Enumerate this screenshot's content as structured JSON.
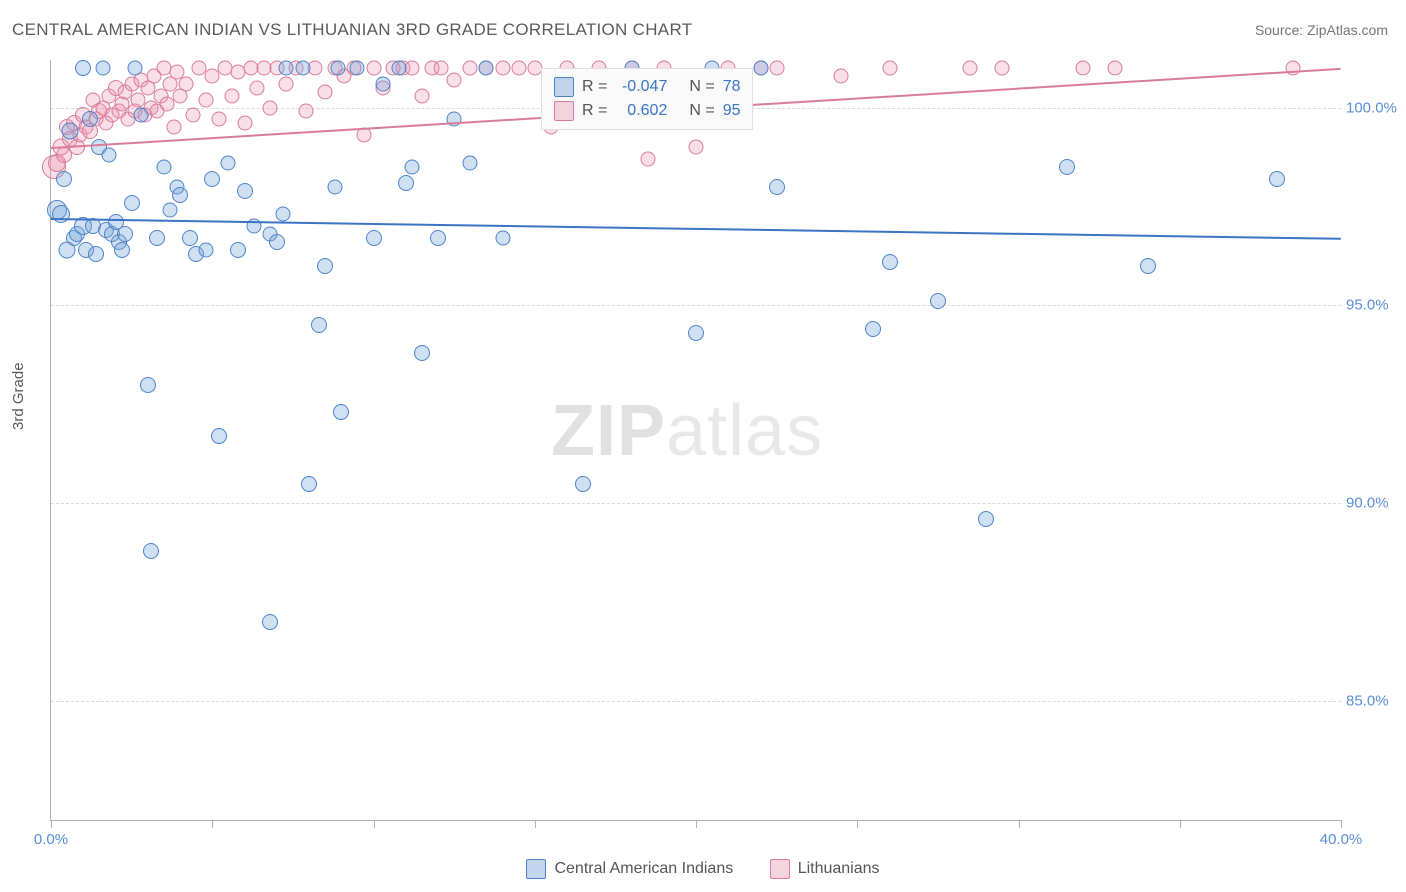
{
  "title": "CENTRAL AMERICAN INDIAN VS LITHUANIAN 3RD GRADE CORRELATION CHART",
  "source": "Source: ZipAtlas.com",
  "ylabel": "3rd Grade",
  "watermark_bold": "ZIP",
  "watermark_light": "atlas",
  "chart": {
    "type": "scatter",
    "xlim": [
      0,
      40
    ],
    "ylim": [
      82,
      101.2
    ],
    "x_ticks": [
      0,
      5,
      10,
      15,
      20,
      25,
      30,
      35,
      40
    ],
    "x_tick_labels_shown": {
      "0": "0.0%",
      "40": "40.0%"
    },
    "y_ticks": [
      85,
      90,
      95,
      100
    ],
    "y_tick_labels": {
      "85": "85.0%",
      "90": "90.0%",
      "95": "95.0%",
      "100": "100.0%"
    },
    "background_color": "#ffffff",
    "grid_color": "#d9d9d9",
    "axis_color": "#b0b0b0",
    "label_fontsize": 15,
    "label_color": "#5a8fd6",
    "marker_base_size": 16,
    "series": {
      "blue": {
        "name": "Central American Indians",
        "color_fill": "rgba(120,165,220,0.35)",
        "color_stroke": "#4f83c7",
        "R": "-0.047",
        "N": "78",
        "trend": {
          "x1": 0,
          "y1": 97.2,
          "x2": 40,
          "y2": 96.7,
          "color": "#3a74c4",
          "width": 2
        },
        "points": [
          [
            0.2,
            97.4,
            18
          ],
          [
            0.3,
            97.3,
            16
          ],
          [
            0.4,
            98.2,
            14
          ],
          [
            0.5,
            96.4,
            15
          ],
          [
            0.6,
            99.4,
            15
          ],
          [
            0.7,
            96.7,
            14
          ],
          [
            0.8,
            96.8,
            14
          ],
          [
            1.0,
            101.0,
            14
          ],
          [
            1.0,
            97.0,
            16
          ],
          [
            1.1,
            96.4,
            14
          ],
          [
            1.2,
            99.7,
            14
          ],
          [
            1.3,
            97.0,
            14
          ],
          [
            1.4,
            96.3,
            14
          ],
          [
            1.5,
            99.0,
            14
          ],
          [
            1.6,
            101.0,
            13
          ],
          [
            1.7,
            96.9,
            14
          ],
          [
            1.8,
            98.8,
            13
          ],
          [
            1.9,
            96.8,
            14
          ],
          [
            2.0,
            97.1,
            14
          ],
          [
            2.1,
            96.6,
            14
          ],
          [
            2.2,
            96.4,
            14
          ],
          [
            2.3,
            96.8,
            14
          ],
          [
            2.5,
            97.6,
            14
          ],
          [
            2.6,
            101.0,
            13
          ],
          [
            2.8,
            99.8,
            13
          ],
          [
            3.0,
            93.0,
            14
          ],
          [
            3.1,
            88.8,
            14
          ],
          [
            3.3,
            96.7,
            14
          ],
          [
            3.5,
            98.5,
            13
          ],
          [
            3.7,
            97.4,
            13
          ],
          [
            3.9,
            98.0,
            13
          ],
          [
            4.0,
            97.8,
            14
          ],
          [
            4.3,
            96.7,
            14
          ],
          [
            4.5,
            96.3,
            14
          ],
          [
            4.8,
            96.4,
            13
          ],
          [
            5.0,
            98.2,
            14
          ],
          [
            5.2,
            91.7,
            14
          ],
          [
            5.5,
            98.6,
            13
          ],
          [
            5.8,
            96.4,
            14
          ],
          [
            6.0,
            97.9,
            14
          ],
          [
            6.3,
            97.0,
            13
          ],
          [
            6.8,
            87.0,
            14
          ],
          [
            6.8,
            96.8,
            13
          ],
          [
            7.0,
            96.6,
            14
          ],
          [
            7.2,
            97.3,
            13
          ],
          [
            7.3,
            101.0,
            13
          ],
          [
            7.8,
            101.0,
            13
          ],
          [
            8.0,
            90.5,
            14
          ],
          [
            8.3,
            94.5,
            14
          ],
          [
            8.5,
            96.0,
            14
          ],
          [
            8.8,
            98.0,
            13
          ],
          [
            8.9,
            101.0,
            13
          ],
          [
            9.0,
            92.3,
            14
          ],
          [
            9.5,
            101.0,
            13
          ],
          [
            10.0,
            96.7,
            14
          ],
          [
            10.3,
            100.6,
            13
          ],
          [
            10.8,
            101.0,
            13
          ],
          [
            11.0,
            98.1,
            14
          ],
          [
            11.2,
            98.5,
            13
          ],
          [
            11.5,
            93.8,
            14
          ],
          [
            12.0,
            96.7,
            14
          ],
          [
            12.5,
            99.7,
            13
          ],
          [
            13.0,
            98.6,
            13
          ],
          [
            13.5,
            101.0,
            13
          ],
          [
            14.0,
            96.7,
            13
          ],
          [
            16.5,
            90.5,
            14
          ],
          [
            18.0,
            101.0,
            13
          ],
          [
            20.0,
            94.3,
            14
          ],
          [
            20.5,
            101.0,
            13
          ],
          [
            22.0,
            101.0,
            13
          ],
          [
            22.5,
            98.0,
            14
          ],
          [
            25.5,
            94.4,
            14
          ],
          [
            26.0,
            96.1,
            14
          ],
          [
            27.5,
            95.1,
            14
          ],
          [
            29.0,
            89.6,
            14
          ],
          [
            31.5,
            98.5,
            14
          ],
          [
            34.0,
            96.0,
            14
          ],
          [
            38.0,
            98.2,
            14
          ]
        ]
      },
      "pink": {
        "name": "Lithuanians",
        "color_fill": "rgba(235,150,175,0.3)",
        "color_stroke": "#d97c9b",
        "R": "0.602",
        "N": "95",
        "trend": {
          "x1": 0,
          "y1": 99.0,
          "x2": 40,
          "y2": 101.0,
          "color": "#d97c9b",
          "width": 2
        },
        "points": [
          [
            0.1,
            98.5,
            22
          ],
          [
            0.2,
            98.6,
            16
          ],
          [
            0.3,
            99.0,
            15
          ],
          [
            0.4,
            98.8,
            14
          ],
          [
            0.5,
            99.5,
            14
          ],
          [
            0.6,
            99.2,
            14
          ],
          [
            0.7,
            99.6,
            14
          ],
          [
            0.8,
            99.0,
            14
          ],
          [
            0.9,
            99.3,
            13
          ],
          [
            1.0,
            99.8,
            14
          ],
          [
            1.1,
            99.5,
            13
          ],
          [
            1.2,
            99.4,
            14
          ],
          [
            1.3,
            100.2,
            13
          ],
          [
            1.4,
            99.7,
            13
          ],
          [
            1.5,
            99.9,
            14
          ],
          [
            1.6,
            100.0,
            13
          ],
          [
            1.7,
            99.6,
            13
          ],
          [
            1.8,
            100.3,
            13
          ],
          [
            1.9,
            99.8,
            13
          ],
          [
            2.0,
            100.5,
            14
          ],
          [
            2.1,
            99.9,
            13
          ],
          [
            2.2,
            100.1,
            13
          ],
          [
            2.3,
            100.4,
            13
          ],
          [
            2.4,
            99.7,
            13
          ],
          [
            2.5,
            100.6,
            13
          ],
          [
            2.6,
            99.9,
            13
          ],
          [
            2.7,
            100.2,
            13
          ],
          [
            2.8,
            100.7,
            13
          ],
          [
            2.9,
            99.8,
            13
          ],
          [
            3.0,
            100.5,
            13
          ],
          [
            3.1,
            100.0,
            13
          ],
          [
            3.2,
            100.8,
            13
          ],
          [
            3.3,
            99.9,
            13
          ],
          [
            3.4,
            100.3,
            13
          ],
          [
            3.5,
            101.0,
            13
          ],
          [
            3.6,
            100.1,
            13
          ],
          [
            3.7,
            100.6,
            13
          ],
          [
            3.8,
            99.5,
            13
          ],
          [
            3.9,
            100.9,
            13
          ],
          [
            4.0,
            100.3,
            13
          ],
          [
            4.2,
            100.6,
            13
          ],
          [
            4.4,
            99.8,
            13
          ],
          [
            4.6,
            101.0,
            13
          ],
          [
            4.8,
            100.2,
            13
          ],
          [
            5.0,
            100.8,
            13
          ],
          [
            5.2,
            99.7,
            13
          ],
          [
            5.4,
            101.0,
            13
          ],
          [
            5.6,
            100.3,
            13
          ],
          [
            5.8,
            100.9,
            13
          ],
          [
            6.0,
            99.6,
            13
          ],
          [
            6.2,
            101.0,
            13
          ],
          [
            6.4,
            100.5,
            13
          ],
          [
            6.6,
            101.0,
            13
          ],
          [
            6.8,
            100.0,
            13
          ],
          [
            7.0,
            101.0,
            13
          ],
          [
            7.3,
            100.6,
            13
          ],
          [
            7.6,
            101.0,
            13
          ],
          [
            7.9,
            99.9,
            13
          ],
          [
            8.2,
            101.0,
            13
          ],
          [
            8.5,
            100.4,
            13
          ],
          [
            8.8,
            101.0,
            13
          ],
          [
            9.1,
            100.8,
            13
          ],
          [
            9.4,
            101.0,
            13
          ],
          [
            9.7,
            99.3,
            13
          ],
          [
            10.0,
            101.0,
            13
          ],
          [
            10.3,
            100.5,
            13
          ],
          [
            10.6,
            101.0,
            13
          ],
          [
            10.9,
            101.0,
            13
          ],
          [
            11.2,
            101.0,
            13
          ],
          [
            11.5,
            100.3,
            13
          ],
          [
            11.8,
            101.0,
            13
          ],
          [
            12.1,
            101.0,
            13
          ],
          [
            12.5,
            100.7,
            13
          ],
          [
            13.0,
            101.0,
            13
          ],
          [
            13.5,
            101.0,
            13
          ],
          [
            14.0,
            101.0,
            13
          ],
          [
            14.5,
            101.0,
            13
          ],
          [
            15.0,
            101.0,
            13
          ],
          [
            15.5,
            99.5,
            13
          ],
          [
            16.0,
            101.0,
            13
          ],
          [
            17.0,
            101.0,
            13
          ],
          [
            18.0,
            101.0,
            13
          ],
          [
            18.5,
            98.7,
            13
          ],
          [
            19.0,
            101.0,
            13
          ],
          [
            20.0,
            99.0,
            13
          ],
          [
            21.0,
            101.0,
            13
          ],
          [
            22.0,
            101.0,
            13
          ],
          [
            22.5,
            101.0,
            13
          ],
          [
            24.5,
            100.8,
            13
          ],
          [
            26.0,
            101.0,
            13
          ],
          [
            28.5,
            101.0,
            13
          ],
          [
            29.5,
            101.0,
            13
          ],
          [
            32.0,
            101.0,
            13
          ],
          [
            33.0,
            101.0,
            13
          ],
          [
            38.5,
            101.0,
            13
          ]
        ]
      }
    }
  },
  "legend_top": {
    "rows": [
      {
        "swatch": "blue",
        "r_label": "R =",
        "r_val": "-0.047",
        "n_label": "N =",
        "n_val": "78"
      },
      {
        "swatch": "pink",
        "r_label": "R =",
        "r_val": "0.602",
        "n_label": "N =",
        "n_val": "95"
      }
    ]
  },
  "bottom_legend": {
    "items": [
      {
        "swatch": "blue",
        "label": "Central American Indians"
      },
      {
        "swatch": "pink",
        "label": "Lithuanians"
      }
    ]
  }
}
